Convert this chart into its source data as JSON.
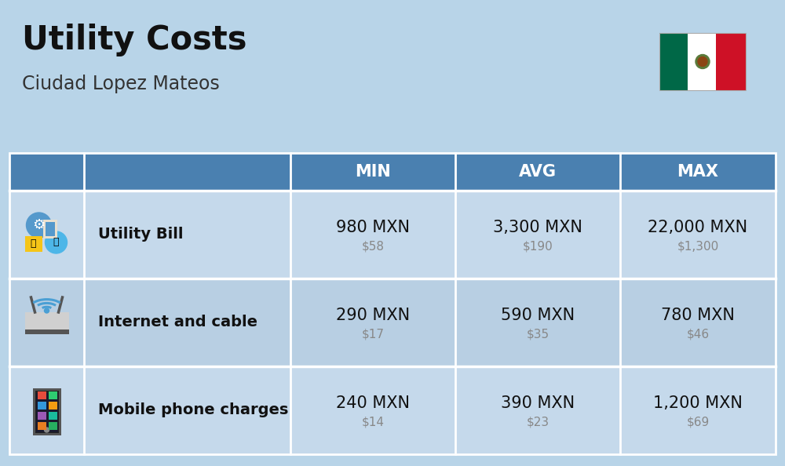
{
  "title": "Utility Costs",
  "subtitle": "Ciudad Lopez Mateos",
  "background_color": "#b8d4e8",
  "header_bg_color": "#4a80b0",
  "header_text_color": "#ffffff",
  "row_bg_odd": "#c5d9eb",
  "row_bg_even": "#b8cfe3",
  "table_border_color": "#ffffff",
  "col_headers": [
    "MIN",
    "AVG",
    "MAX"
  ],
  "rows": [
    {
      "label": "Utility Bill",
      "min_mxn": "980 MXN",
      "min_usd": "$58",
      "avg_mxn": "3,300 MXN",
      "avg_usd": "$190",
      "max_mxn": "22,000 MXN",
      "max_usd": "$1,300",
      "icon": "utility"
    },
    {
      "label": "Internet and cable",
      "min_mxn": "290 MXN",
      "min_usd": "$17",
      "avg_mxn": "590 MXN",
      "avg_usd": "$35",
      "max_mxn": "780 MXN",
      "max_usd": "$46",
      "icon": "internet"
    },
    {
      "label": "Mobile phone charges",
      "min_mxn": "240 MXN",
      "min_usd": "$14",
      "avg_mxn": "390 MXN",
      "avg_usd": "$23",
      "max_mxn": "1,200 MXN",
      "max_usd": "$69",
      "icon": "mobile"
    }
  ],
  "title_fontsize": 30,
  "subtitle_fontsize": 17,
  "header_fontsize": 15,
  "label_fontsize": 14,
  "value_fontsize": 15,
  "usd_fontsize": 11,
  "title_color": "#111111",
  "subtitle_color": "#333333",
  "value_color": "#111111",
  "usd_color": "#888888",
  "label_color": "#111111"
}
